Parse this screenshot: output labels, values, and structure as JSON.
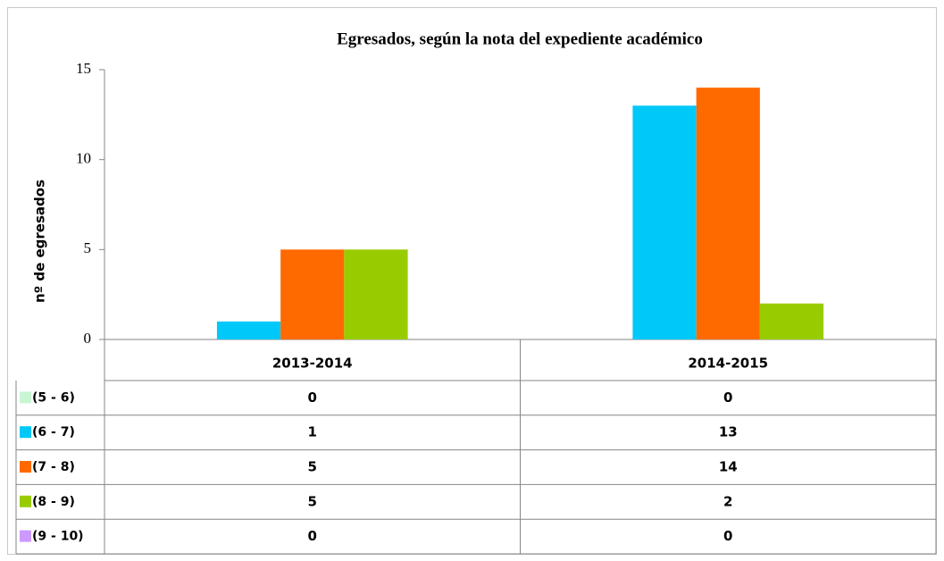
{
  "chart_data": {
    "type": "bar",
    "title": "Egresados, según la nota del expediente académico",
    "y_label": "nº de egresados",
    "categories": [
      "2013-2014",
      "2014-2015"
    ],
    "series": [
      {
        "name": "(5 - 6)",
        "color": "#c8f5d4",
        "values": [
          0,
          0
        ]
      },
      {
        "name": "(6 - 7)",
        "color": "#00c8f8",
        "values": [
          1,
          13
        ]
      },
      {
        "name": "(7 - 8)",
        "color": "#ff6a00",
        "values": [
          5,
          14
        ]
      },
      {
        "name": "(8 - 9)",
        "color": "#99cc00",
        "values": [
          5,
          2
        ]
      },
      {
        "name": "(9 - 10)",
        "color": "#cc99ff",
        "values": [
          0,
          0
        ]
      }
    ],
    "ylim": [
      0,
      15
    ],
    "yticks": [
      0,
      5,
      10,
      15
    ],
    "grid": false
  }
}
